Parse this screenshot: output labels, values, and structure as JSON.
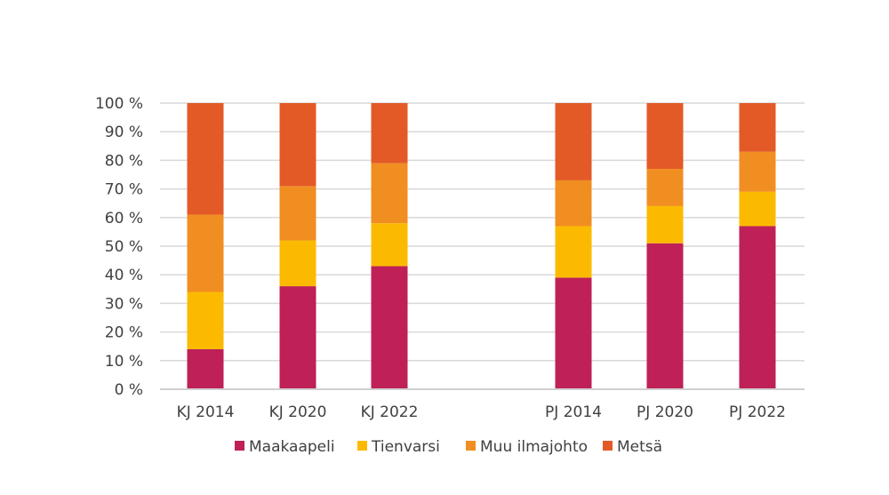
{
  "chart_data": {
    "type": "bar",
    "stacked": true,
    "categories": [
      "KJ 2014",
      "KJ 2020",
      "KJ 2022",
      "",
      "PJ 2014",
      "PJ 2020",
      "PJ 2022"
    ],
    "series": [
      {
        "name": "Maakaapeli",
        "color": "#BE2057",
        "values": [
          14,
          36,
          43,
          null,
          39,
          51,
          57
        ]
      },
      {
        "name": "Tienvarsi",
        "color": "#FBBA00",
        "values": [
          20,
          16,
          15,
          null,
          18,
          13,
          12
        ]
      },
      {
        "name": "Muu ilmajohto",
        "color": "#F18E21",
        "values": [
          27,
          19,
          21,
          null,
          16,
          13,
          14
        ]
      },
      {
        "name": "Metsä",
        "color": "#E35A27",
        "values": [
          39,
          29,
          21,
          null,
          27,
          23,
          17
        ]
      }
    ],
    "y_ticks": [
      "0 %",
      "10 %",
      "20 %",
      "30 %",
      "40 %",
      "50 %",
      "60 %",
      "70 %",
      "80 %",
      "90 %",
      "100 %"
    ],
    "ylim": [
      0,
      100
    ],
    "title": "",
    "xlabel": "",
    "ylabel": "",
    "grid": true,
    "legend_position": "bottom"
  }
}
